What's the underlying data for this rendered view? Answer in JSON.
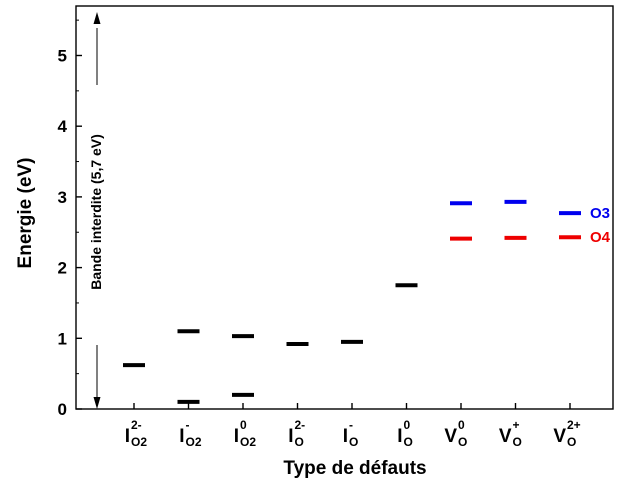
{
  "chart_data": {
    "type": "scatter",
    "xlabel": "Type de défauts",
    "ylabel": "Energie (eV)",
    "ylim": [
      0,
      5.7
    ],
    "yticks": [
      0,
      1,
      2,
      3,
      4,
      5
    ],
    "grid": false,
    "categories": [
      {
        "base": "I",
        "sup": "2-",
        "sub": "O2"
      },
      {
        "base": "I",
        "sup": "-",
        "sub": "O2"
      },
      {
        "base": "I",
        "sup": "0",
        "sub": "O2"
      },
      {
        "base": "I",
        "sup": "2-",
        "sub": "O"
      },
      {
        "base": "I",
        "sup": "-",
        "sub": "O"
      },
      {
        "base": "I",
        "sup": "0",
        "sub": "O"
      },
      {
        "base": "V",
        "sup": "0",
        "sub": "O"
      },
      {
        "base": "V",
        "sup": "+",
        "sub": "O"
      },
      {
        "base": "V",
        "sup": "2+",
        "sub": "O"
      }
    ],
    "series": [
      {
        "color": "#000000",
        "points": [
          [
            0,
            0.62
          ],
          [
            1,
            1.1
          ],
          [
            1,
            0.1
          ],
          [
            2,
            1.03
          ],
          [
            2,
            0.2
          ],
          [
            3,
            0.92
          ],
          [
            4,
            0.95
          ],
          [
            5,
            1.75
          ]
        ]
      },
      {
        "name": "O3",
        "color": "#0000ee",
        "points": [
          [
            6,
            2.91
          ],
          [
            7,
            2.93
          ],
          [
            8,
            2.77
          ]
        ]
      },
      {
        "name": "O4",
        "color": "#ee0000",
        "points": [
          [
            6,
            2.41
          ],
          [
            7,
            2.42
          ],
          [
            8,
            2.43
          ]
        ]
      }
    ],
    "annotation": "Bande interdite (5,7 eV)"
  }
}
